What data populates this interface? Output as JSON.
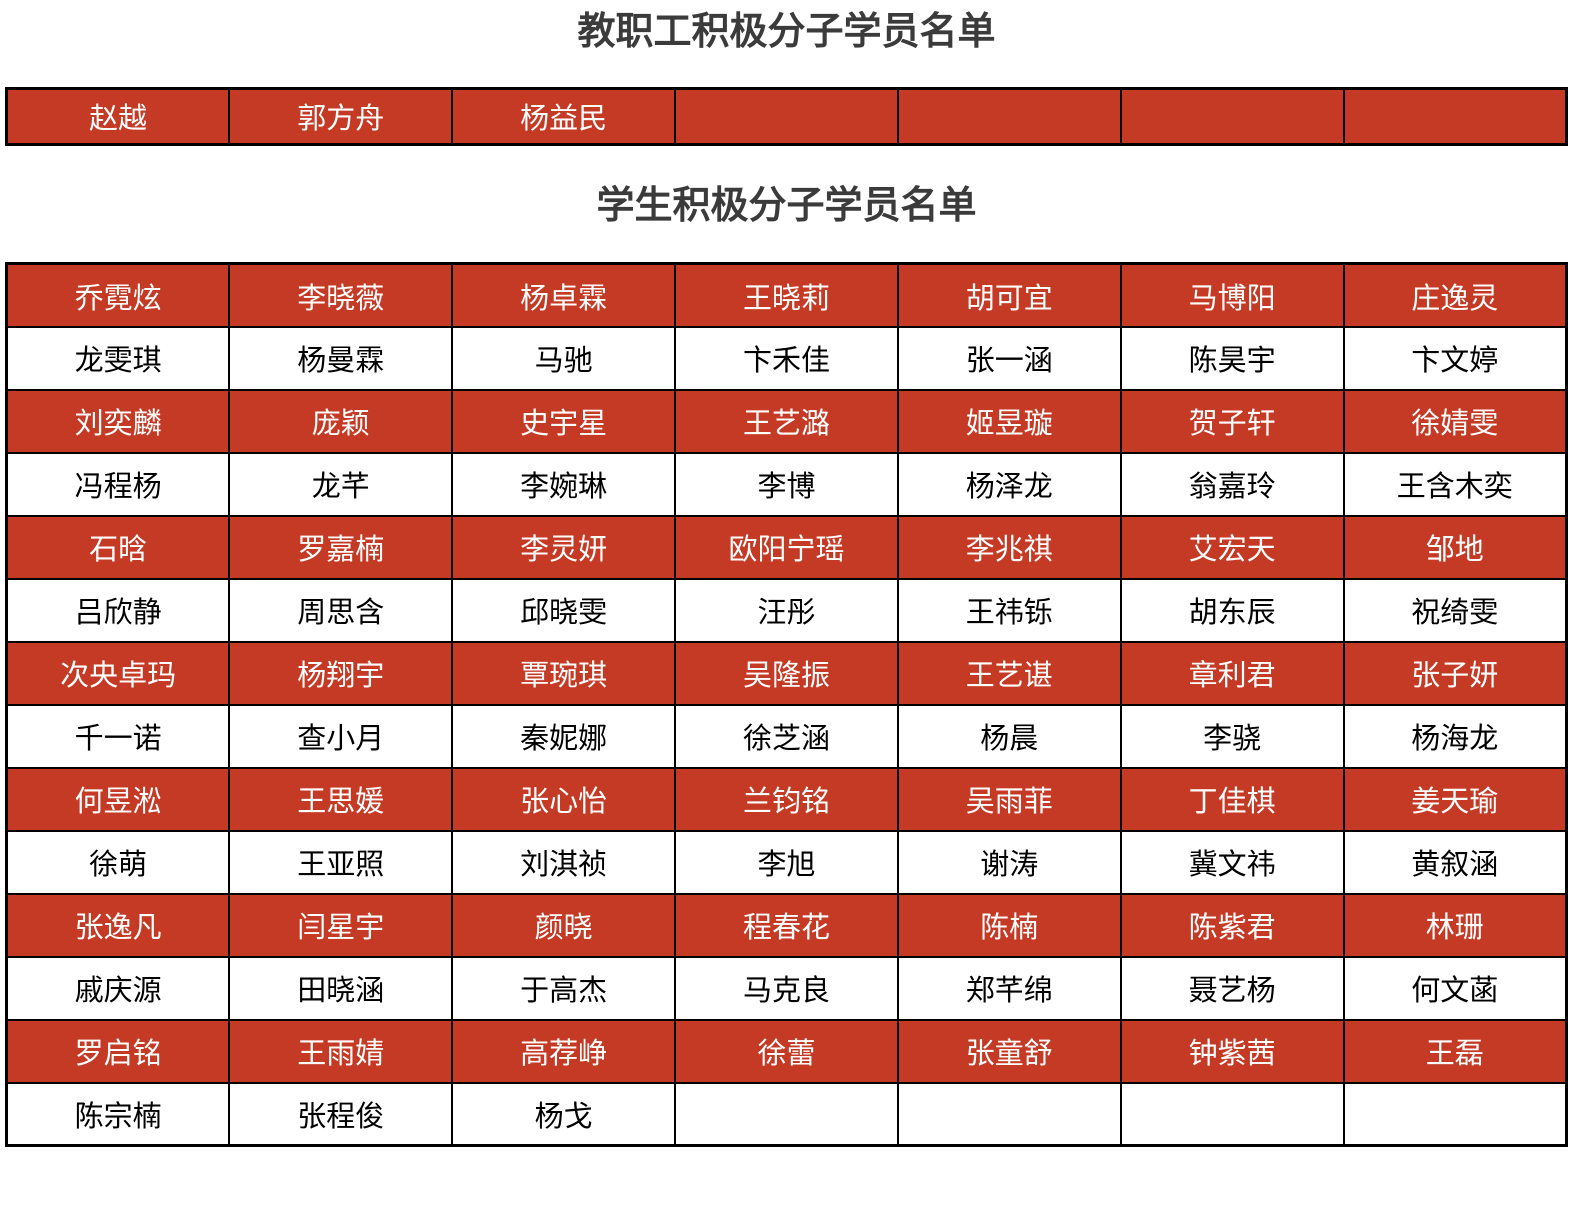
{
  "colors": {
    "row_red": "#C43A25",
    "title_color": "#3B3B3B",
    "border_color": "#000000",
    "text_on_red": "#FFFFFF",
    "text_on_white": "#000000"
  },
  "faculty": {
    "title": "教职工积极分子学员名单",
    "rows": [
      [
        "赵越",
        "郭方舟",
        "杨益民",
        "",
        "",
        "",
        ""
      ]
    ]
  },
  "students": {
    "title": "学生积极分子学员名单",
    "rows": [
      [
        "乔霓炫",
        "李晓薇",
        "杨卓霖",
        "王晓莉",
        "胡可宜",
        "马博阳",
        "庄逸灵"
      ],
      [
        "龙雯琪",
        "杨曼霖",
        "马驰",
        "卞禾佳",
        "张一涵",
        "陈昊宇",
        "卞文婷"
      ],
      [
        "刘奕麟",
        "庞颖",
        "史宇星",
        "王艺潞",
        "姬昱璇",
        "贺子轩",
        "徐婧雯"
      ],
      [
        "冯程杨",
        "龙芊",
        "李婉琳",
        "李博",
        "杨泽龙",
        "翁嘉玲",
        "王含木奕"
      ],
      [
        "石晗",
        "罗嘉楠",
        "李灵妍",
        "欧阳宁瑶",
        "李兆祺",
        "艾宏天",
        "邹地"
      ],
      [
        "吕欣静",
        "周思含",
        "邱晓雯",
        "汪彤",
        "王祎铄",
        "胡东辰",
        "祝绮雯"
      ],
      [
        "次央卓玛",
        "杨翔宇",
        "覃琬琪",
        "吴隆振",
        "王艺谌",
        "章利君",
        "张子妍"
      ],
      [
        "千一诺",
        "查小月",
        "秦妮娜",
        "徐芝涵",
        "杨晨",
        "李骁",
        "杨海龙"
      ],
      [
        "何昱淞",
        "王思媛",
        "张心怡",
        "兰钧铭",
        "吴雨菲",
        "丁佳棋",
        "姜天瑜"
      ],
      [
        "徐萌",
        "王亚照",
        "刘淇祯",
        "李旭",
        "谢涛",
        "冀文祎",
        "黄叙涵"
      ],
      [
        "张逸凡",
        "闫星宇",
        "颜晓",
        "程春花",
        "陈楠",
        "陈紫君",
        "林珊"
      ],
      [
        "戚庆源",
        "田晓涵",
        "于高杰",
        "马克良",
        "郑芊绵",
        "聂艺杨",
        "何文菡"
      ],
      [
        "罗启铭",
        "王雨婧",
        "高荐峥",
        "徐蕾",
        "张童舒",
        "钟紫茜",
        "王磊"
      ],
      [
        "陈宗楠",
        "张程俊",
        "杨戈",
        "",
        "",
        "",
        ""
      ]
    ]
  }
}
